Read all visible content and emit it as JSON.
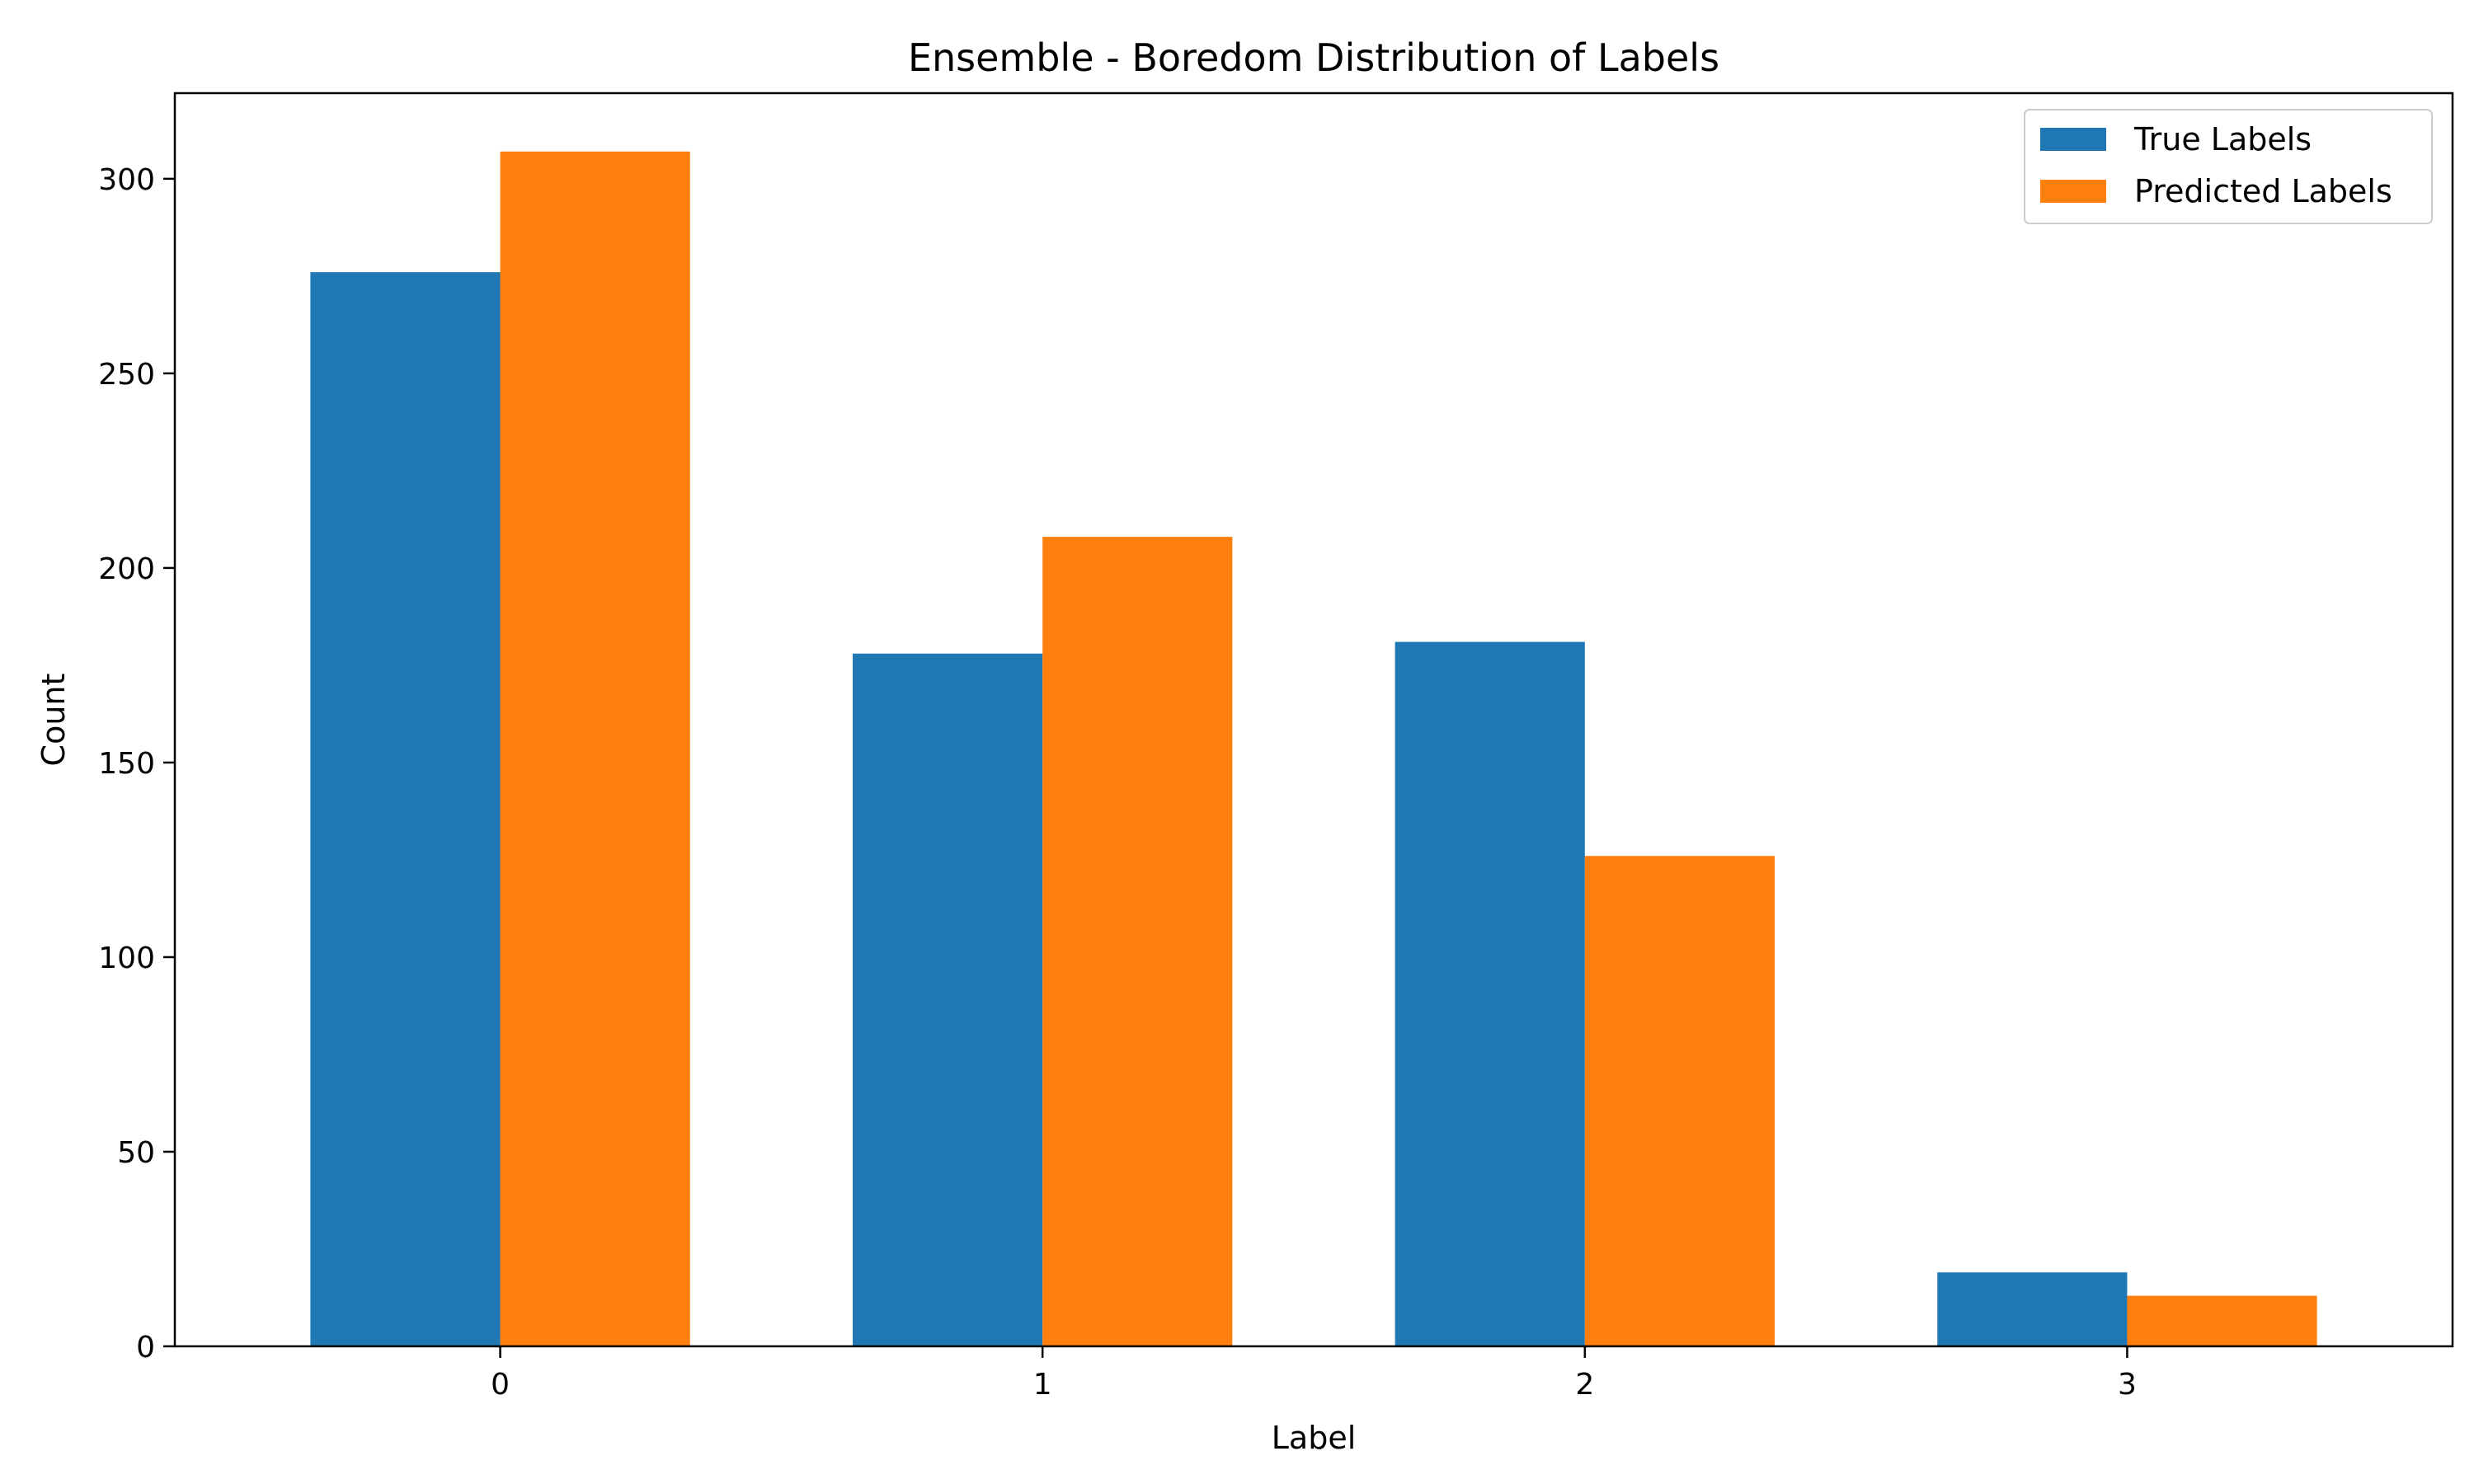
{
  "chart_data": {
    "type": "bar",
    "title": "Ensemble - Boredom Distribution of Labels",
    "xlabel": "Label",
    "ylabel": "Count",
    "categories": [
      "0",
      "1",
      "2",
      "3"
    ],
    "series": [
      {
        "name": "True Labels",
        "values": [
          276,
          178,
          181,
          19
        ],
        "color": "#1f77b4"
      },
      {
        "name": "Predicted Labels",
        "values": [
          307,
          208,
          126,
          13
        ],
        "color": "#ff7f0e"
      }
    ],
    "ylim": [
      0,
      322
    ],
    "yticks": [
      0,
      50,
      100,
      150,
      200,
      250,
      300
    ],
    "grid": false,
    "legend_position": "top-right"
  }
}
